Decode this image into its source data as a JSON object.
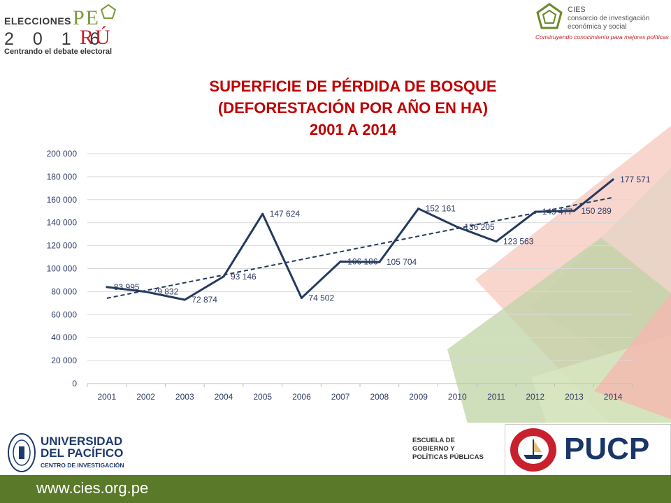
{
  "header": {
    "elecciones_word": "ELECCIONES",
    "year_digits": "2 0 1 6",
    "pe_letters": "PE",
    "ru_letters": "RÚ",
    "tagline": "Centrando el debate electoral",
    "cies_name": "CIES",
    "cies_line1": "consorcio de investigación",
    "cies_line2": "económica y social",
    "cies_tagline": "Construyendo conocimiento para mejores políticas"
  },
  "chart_data": {
    "type": "line",
    "title_lines": [
      "SUPERFICIE DE PÉRDIDA DE BOSQUE",
      "(DEFORESTACIÓN POR AÑO EN HA)",
      "2001 A 2014"
    ],
    "categories": [
      "2001",
      "2002",
      "2003",
      "2004",
      "2005",
      "2006",
      "2007",
      "2008",
      "2009",
      "2010",
      "2011",
      "2012",
      "2013",
      "2014"
    ],
    "series": [
      {
        "values": [
          83995,
          79832,
          72874,
          93146,
          147624,
          74502,
          106186,
          105704,
          152161,
          136205,
          123563,
          149477,
          150289,
          177571
        ]
      }
    ],
    "data_labels": [
      "83 995",
      "79 832",
      "72 874",
      "93 146",
      "147 624",
      "74 502",
      "106 186",
      "105 704",
      "152 161",
      "136 205",
      "123 563",
      "149 477",
      "150 289",
      "177 571"
    ],
    "trendline": {
      "style": "dashed",
      "type": "linear"
    },
    "ylim": [
      0,
      200000
    ],
    "yticks": [
      0,
      20000,
      40000,
      60000,
      80000,
      100000,
      120000,
      140000,
      160000,
      180000,
      200000
    ],
    "ytick_labels": [
      "0",
      "20 000",
      "40 000",
      "60 000",
      "80 000",
      "100 000",
      "120 000",
      "140 000",
      "160 000",
      "180 000",
      "200 000"
    ],
    "grid": true,
    "colors": {
      "line": "#243a5e",
      "trend": "#243a5e",
      "title": "#c00000",
      "axis_text": "#2f3b66",
      "grid": "#d9d9d9"
    }
  },
  "footer": {
    "up_name_line1": "UNIVERSIDAD",
    "up_name_line2": "DEL PACÍFICO",
    "up_sub": "CENTRO DE INVESTIGACIÓN",
    "escuela_line1": "ESCUELA DE",
    "escuela_line2": "GOBIERNO Y",
    "escuela_line3": "POLÍTICAS PÚBLICAS",
    "pucp": "PUCP",
    "url": "www.cies.org.pe"
  }
}
